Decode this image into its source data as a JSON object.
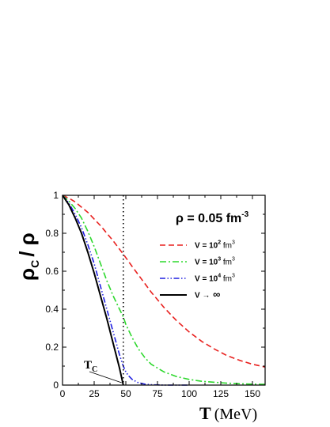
{
  "chart_data": {
    "type": "line",
    "xlabel": "T",
    "xunit": "(MeV)",
    "ylabel": "ρ",
    "ylabel_sub": "C",
    "ylabel_tail": "/ ρ",
    "xlim": [
      0,
      160
    ],
    "ylim": [
      0,
      1
    ],
    "xticks": [
      "0",
      "25",
      "50",
      "75",
      "100",
      "125",
      "150"
    ],
    "yticks": [
      "0",
      "0.2",
      "0.4",
      "0.6",
      "0.8",
      "1"
    ],
    "grid": false,
    "legend_position": "top-right",
    "legend_title": {
      "main": "ρ = 0.05 fm",
      "sup": "-3"
    },
    "annotation": {
      "main": "T",
      "sub": "C",
      "x": 48
    },
    "vertical_line_x": 48,
    "series": [
      {
        "name": "V = 10^2 fm^3",
        "legend": {
          "pre": "V = 10",
          "sup1": "2",
          "mid": " fm",
          "sup2": "3"
        },
        "color": "#e8201e",
        "style": "dashed",
        "x": [
          0,
          5,
          10,
          20,
          30,
          40,
          48,
          55,
          60,
          70,
          80,
          90,
          100,
          110,
          120,
          130,
          140,
          150,
          160
        ],
        "y": [
          1.0,
          0.985,
          0.965,
          0.91,
          0.84,
          0.76,
          0.69,
          0.625,
          0.58,
          0.49,
          0.41,
          0.34,
          0.28,
          0.23,
          0.19,
          0.155,
          0.13,
          0.11,
          0.095
        ]
      },
      {
        "name": "V = 10^3 fm^3",
        "legend": {
          "pre": "V = 10",
          "sup1": "3",
          "mid": " fm",
          "sup2": "3"
        },
        "color": "#2dd82d",
        "style": "dash-dot",
        "x": [
          0,
          5,
          10,
          15,
          20,
          25,
          30,
          35,
          40,
          45,
          48,
          50,
          55,
          60,
          65,
          70,
          80,
          90,
          100,
          110,
          120,
          130,
          140,
          150,
          160
        ],
        "y": [
          1.0,
          0.97,
          0.93,
          0.88,
          0.81,
          0.73,
          0.64,
          0.55,
          0.47,
          0.4,
          0.36,
          0.32,
          0.25,
          0.19,
          0.145,
          0.11,
          0.07,
          0.045,
          0.03,
          0.02,
          0.015,
          0.01,
          0.007,
          0.005,
          0.004
        ]
      },
      {
        "name": "V = 10^4 fm^3",
        "legend": {
          "pre": "V = 10",
          "sup1": "4",
          "mid": " fm",
          "sup2": "3"
        },
        "color": "#2020e0",
        "style": "dash-dot-dot",
        "x": [
          0,
          5,
          10,
          15,
          20,
          25,
          30,
          35,
          40,
          45,
          48,
          50,
          52,
          55,
          60,
          65,
          70,
          80,
          90,
          100
        ],
        "y": [
          1.0,
          0.96,
          0.9,
          0.83,
          0.74,
          0.64,
          0.52,
          0.4,
          0.28,
          0.16,
          0.1,
          0.07,
          0.05,
          0.03,
          0.012,
          0.005,
          0.002,
          0.0,
          0.0,
          0.0
        ]
      },
      {
        "name": "V → ∞",
        "legend": {
          "pre": "V ",
          "arrow": "→",
          "tail": " ∞"
        },
        "color": "#000000",
        "style": "solid",
        "x": [
          0,
          5,
          10,
          15,
          20,
          25,
          30,
          35,
          40,
          45,
          48
        ],
        "y": [
          1.0,
          0.95,
          0.88,
          0.8,
          0.7,
          0.59,
          0.47,
          0.35,
          0.22,
          0.09,
          0.0
        ]
      }
    ]
  }
}
